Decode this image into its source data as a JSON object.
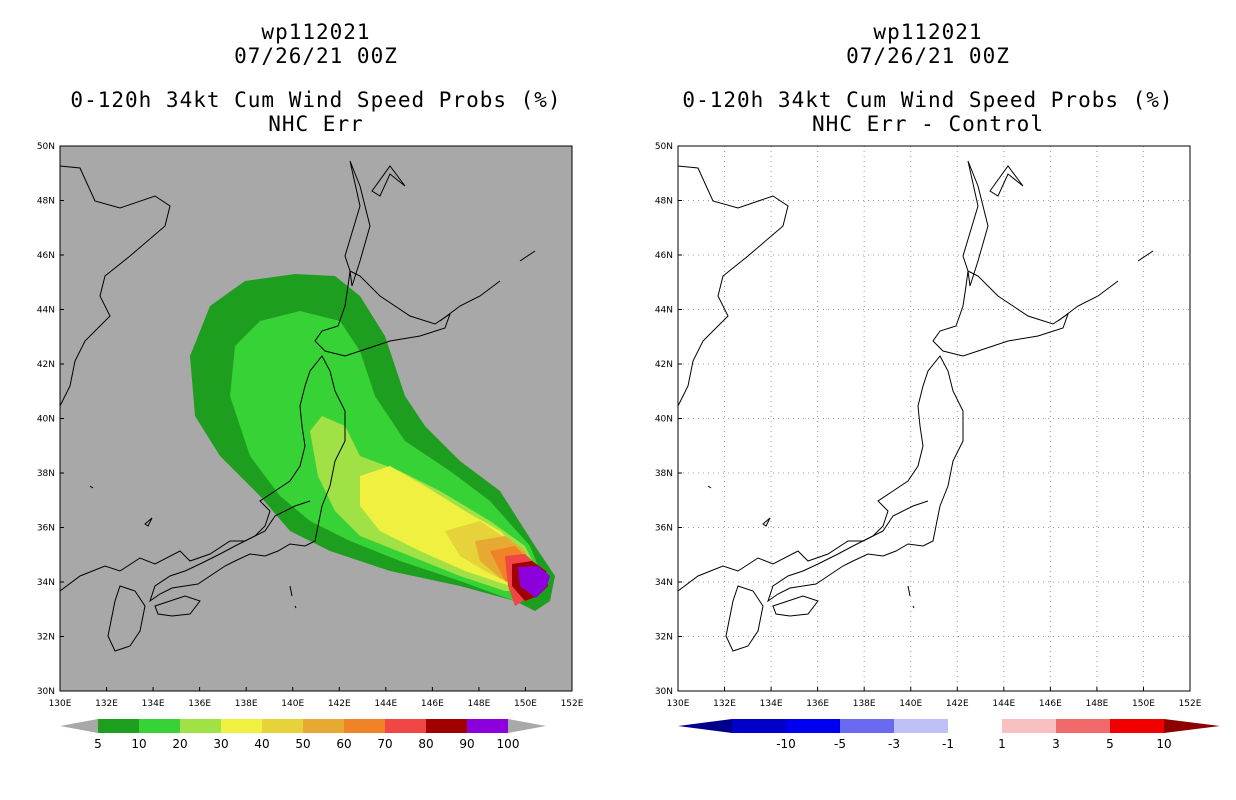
{
  "left_panel": {
    "title_lines": [
      "wp112021",
      "07/26/21 00Z",
      "0-120h 34kt Cum Wind Speed Probs (%)",
      "NHC Err"
    ],
    "background_color": "#a8a8a8",
    "lat_labels": [
      "50N",
      "48N",
      "46N",
      "44N",
      "42N",
      "40N",
      "38N",
      "36N",
      "34N",
      "32N",
      "30N"
    ],
    "lon_labels": [
      "130E",
      "132E",
      "134E",
      "136E",
      "138E",
      "140E",
      "142E",
      "144E",
      "146E",
      "148E",
      "150E",
      "152E"
    ],
    "colorbar": {
      "labels": [
        "5",
        "10",
        "20",
        "30",
        "40",
        "50",
        "60",
        "70",
        "80",
        "90",
        "100"
      ],
      "colors": [
        "#1e9e1e",
        "#36d236",
        "#a0e246",
        "#f0f040",
        "#e6d23a",
        "#e6aa32",
        "#f08228",
        "#f04646",
        "#a00000",
        "#8c00dc"
      ]
    }
  },
  "right_panel": {
    "title_lines": [
      "wp112021",
      "07/26/21 00Z",
      "0-120h 34kt Cum Wind Speed Probs (%)",
      "NHC Err - Control"
    ],
    "background_color": "#ffffff",
    "lat_labels": [
      "50N",
      "48N",
      "46N",
      "44N",
      "42N",
      "40N",
      "38N",
      "36N",
      "34N",
      "32N",
      "30N"
    ],
    "lon_labels": [
      "130E",
      "132E",
      "134E",
      "136E",
      "138E",
      "140E",
      "142E",
      "144E",
      "146E",
      "148E",
      "150E",
      "152E"
    ],
    "colorbar": {
      "labels": [
        "-10",
        "-5",
        "-3",
        "-1",
        "1",
        "3",
        "5",
        "10"
      ],
      "colors": [
        "#0000c8",
        "#0000f0",
        "#6a6af0",
        "#c0c0f8",
        "#ffffff",
        "#f8c0c0",
        "#f06a6a",
        "#f00000"
      ],
      "end_left": "#00008c",
      "end_right": "#8c0000"
    }
  },
  "probability_contours": [
    {
      "level": "5",
      "color": "#1e9e1e"
    },
    {
      "level": "10",
      "color": "#36d236"
    },
    {
      "level": "20",
      "color": "#a0e246"
    },
    {
      "level": "30",
      "color": "#f0f040"
    },
    {
      "level": "40",
      "color": "#e6d23a"
    },
    {
      "level": "50",
      "color": "#e6aa32"
    },
    {
      "level": "60",
      "color": "#f08228"
    },
    {
      "level": "70",
      "color": "#f04646"
    },
    {
      "level": "80",
      "color": "#a00000"
    },
    {
      "level": "90",
      "color": "#8c00dc"
    }
  ]
}
